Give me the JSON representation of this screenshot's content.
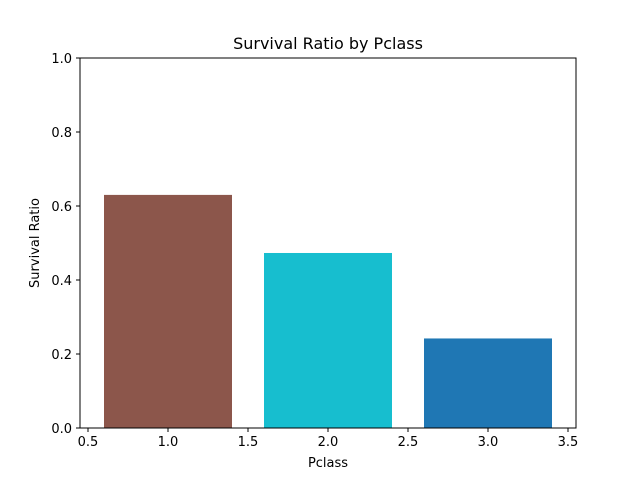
{
  "chart_data": {
    "type": "bar",
    "title": "Survival Ratio by Pclass",
    "xlabel": "Pclass",
    "ylabel": "Survival Ratio",
    "x": [
      1,
      2,
      3
    ],
    "values": [
      0.63,
      0.473,
      0.242
    ],
    "colors": [
      "#8c564b",
      "#17becf",
      "#1f77b4"
    ],
    "bar_width": 0.8,
    "xlim": [
      0.45,
      3.55
    ],
    "ylim": [
      0.0,
      1.0
    ],
    "xticks": [
      0.5,
      1.0,
      1.5,
      2.0,
      2.5,
      3.0,
      3.5
    ],
    "xtick_labels": [
      "0.5",
      "1.0",
      "1.5",
      "2.0",
      "2.5",
      "3.0",
      "3.5"
    ],
    "yticks": [
      0.0,
      0.2,
      0.4,
      0.6,
      0.8,
      1.0
    ],
    "ytick_labels": [
      "0.0",
      "0.2",
      "0.4",
      "0.6",
      "0.8",
      "1.0"
    ],
    "grid": false,
    "legend": false
  }
}
